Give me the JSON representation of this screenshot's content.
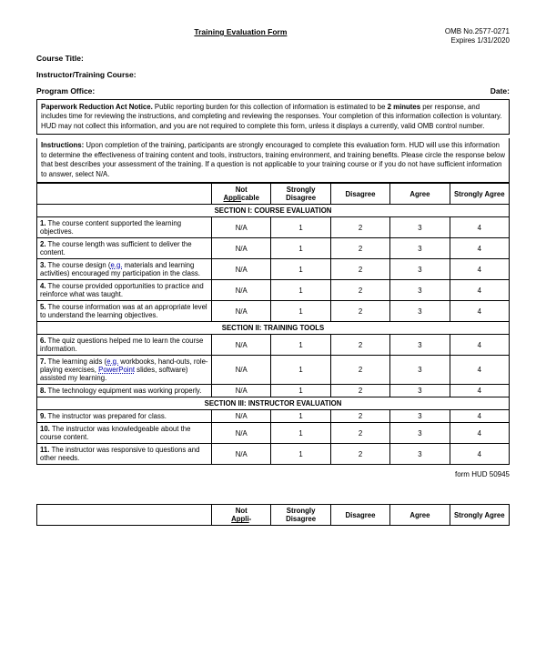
{
  "header": {
    "form_title": "Training Evaluation Form",
    "omb_no": "OMB No.2577-0271",
    "expires": "Expires 1/31/2020"
  },
  "fields": {
    "course_title_label": "Course Title:",
    "instructor_label": "Instructor/Training Course:",
    "program_office_label": "Program Office:",
    "date_label": "Date:"
  },
  "notice": {
    "heading": "Paperwork Reduction Act Notice.",
    "body": " Public reporting burden for this collection of information is estimated to be ",
    "minutes_bold": "2 minutes",
    "body2": " per response, and includes time for reviewing the instructions, and completing and reviewing the responses. Your completion of this information collection is voluntary. HUD may not collect this information, and you are not required to complete this form, unless it displays a currently, valid OMB control number."
  },
  "instructions": {
    "heading": "Instructions:",
    "body": " Upon completion of the training, participants are strongly encouraged to complete this evaluation form. HUD will use this information to determine the effectiveness of training content and tools, instructors, training environment, and training benefits. Please circle the response below that best describes your assessment of the training. If a question is not applicable to your training course or if you do not have sufficient information to answer, select N/A."
  },
  "columns": {
    "na_line1": "Not",
    "na_line2": "Appli",
    "na_line3": "cable",
    "c1": "Strongly Disagree",
    "c2": "Disagree",
    "c3": "Agree",
    "c4": "Strongly Agree"
  },
  "sections": {
    "s1": "SECTION I: COURSE EVALUATION",
    "s2": "SECTION II: TRAINING TOOLS",
    "s3": "SECTION III: INSTRUCTOR EVALUATION"
  },
  "scale": {
    "na": "N/A",
    "v1": "1",
    "v2": "2",
    "v3": "3",
    "v4": "4"
  },
  "q": {
    "q1n": "1.",
    "q1": " The course content supported the learning objectives.",
    "q2n": "2.",
    "q2": " The course length was sufficient to deliver the content.",
    "q3n": "3.",
    "q3a": " The course design (",
    "q3link": "e.g.",
    "q3b": " materials and learning activities) encouraged my participation in the class.",
    "q4n": "4.",
    "q4": " The course provided opportunities to practice and reinforce what was taught.",
    "q5n": "5.",
    "q5": " The course information was at an appropriate level to understand the learning objectives.",
    "q6n": "6.",
    "q6": " The quiz questions helped me to learn the course information.",
    "q7n": "7.",
    "q7a": " The learning aids (",
    "q7link1": "e.g.",
    "q7b": " workbooks, hand-outs, role-playing exercises, ",
    "q7link2": "PowerPoint",
    "q7c": " slides, software) assisted my learning.",
    "q8n": "8.",
    "q8": " The technology equipment was working properly.",
    "q9n": "9.",
    "q9": " The instructor was prepared for class.",
    "q10n": "10.",
    "q10": " The instructor was knowledgeable about the course content.",
    "q11n": "11.",
    "q11": " The instructor was responsive to questions and other needs."
  },
  "footer": {
    "form_no": "form HUD 50945"
  }
}
